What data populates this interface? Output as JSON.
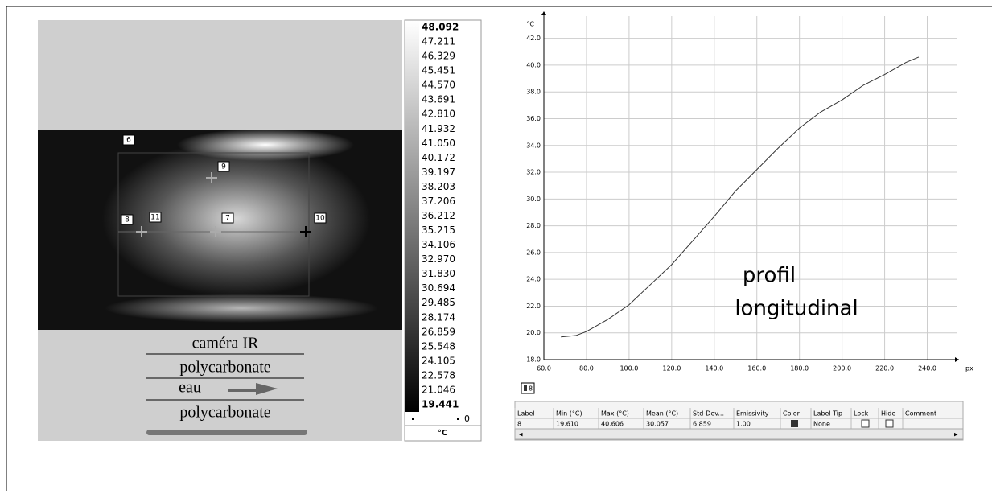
{
  "thermal_image": {
    "spots": [
      "6",
      "9",
      "8",
      "11",
      "7",
      "10"
    ],
    "scale_labels": [
      "48.092",
      "47.211",
      "46.329",
      "45.451",
      "44.570",
      "43.691",
      "42.810",
      "41.932",
      "41.050",
      "40.172",
      "39.197",
      "38.203",
      "37.206",
      "36.212",
      "35.215",
      "34.106",
      "32.970",
      "31.830",
      "30.694",
      "29.485",
      "28.174",
      "26.859",
      "25.548",
      "24.105",
      "22.578",
      "21.046",
      "19.441"
    ],
    "scale_zero": "0",
    "scale_unit": "°C",
    "legend": [
      "caméra IR",
      "polycarbonate",
      "eau",
      "polycarbonate"
    ]
  },
  "chart_data": {
    "type": "line",
    "ylabel": "°C",
    "xlabel": "px",
    "annotations": [
      "profil",
      "longitudinal"
    ],
    "x": [
      68,
      75,
      80,
      90,
      100,
      110,
      120,
      130,
      140,
      150,
      160,
      170,
      180,
      190,
      200,
      210,
      220,
      230,
      236
    ],
    "series": [
      {
        "name": "8",
        "color": "#333333",
        "values": [
          19.7,
          19.8,
          20.1,
          21.0,
          22.1,
          23.6,
          25.1,
          26.9,
          28.7,
          30.6,
          32.2,
          33.8,
          35.3,
          36.5,
          37.4,
          38.5,
          39.3,
          40.2,
          40.6
        ]
      }
    ],
    "xlim": [
      60,
      250
    ],
    "ylim": [
      18,
      43
    ],
    "xticks": [
      {
        "value": 60,
        "label": "60.0"
      },
      {
        "value": 80,
        "label": "80.0"
      },
      {
        "value": 100,
        "label": "100.0"
      },
      {
        "value": 120,
        "label": "120.0"
      },
      {
        "value": 140,
        "label": "140.0"
      },
      {
        "value": 160,
        "label": "160.0"
      },
      {
        "value": 180,
        "label": "180.0"
      },
      {
        "value": 200,
        "label": "200.0"
      },
      {
        "value": 220,
        "label": "220.0"
      },
      {
        "value": 240,
        "label": "240.0"
      }
    ],
    "yticks": [
      {
        "value": 18,
        "label": "18.0"
      },
      {
        "value": 20,
        "label": "20.0"
      },
      {
        "value": 22,
        "label": "22.0"
      },
      {
        "value": 24,
        "label": "24.0"
      },
      {
        "value": 26,
        "label": "26.0"
      },
      {
        "value": 28,
        "label": "28.0"
      },
      {
        "value": 30,
        "label": "30.0"
      },
      {
        "value": 32,
        "label": "32.0"
      },
      {
        "value": 34,
        "label": "34.0"
      },
      {
        "value": 36,
        "label": "36.0"
      },
      {
        "value": 38,
        "label": "38.0"
      },
      {
        "value": 40,
        "label": "40.0"
      },
      {
        "value": 42,
        "label": "42.0"
      }
    ],
    "grid": true
  },
  "table": {
    "headers": [
      "Label",
      "Min (°C)",
      "Max (°C)",
      "Mean (°C)",
      "Std-Dev...",
      "Emissivity",
      "Color",
      "Label Tip",
      "Lock",
      "Hide",
      "Comment"
    ],
    "rows": [
      [
        "8",
        "19.610",
        "40.606",
        "30.057",
        "6.859",
        "1.00",
        "",
        "None",
        "",
        "",
        ""
      ]
    ]
  }
}
